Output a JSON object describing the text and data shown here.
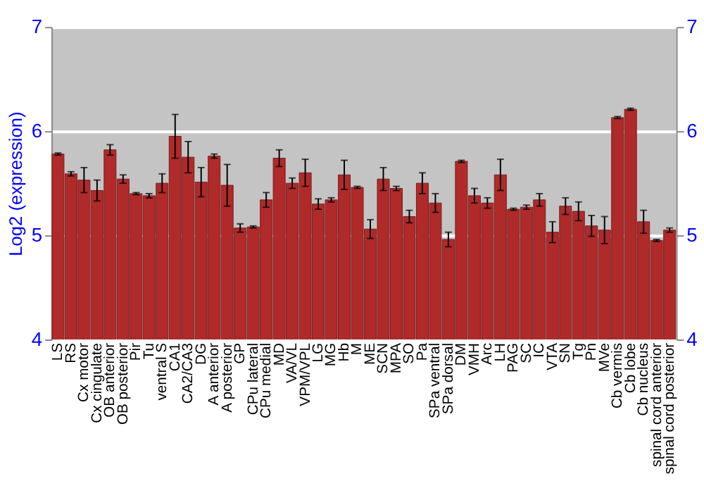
{
  "chart_data": {
    "type": "bar",
    "ylabel": "Log2 (expression)",
    "categories": [
      "LS",
      "RS",
      "Cx motor",
      "Cx cingulate",
      "OB anterior",
      "OB posterior",
      "Pir",
      "Tu",
      "ventral S",
      "CA1",
      "CA2/CA3",
      "DG",
      "A anterior",
      "A posterior",
      "GP",
      "CPu lateral",
      "CPu medial",
      "MD",
      "VA/VL",
      "VPM/VPL",
      "LG",
      "MG",
      "Hb",
      "M",
      "ME",
      "SCN",
      "MPA",
      "SO",
      "Pa",
      "SPa ventral",
      "SPa dorsal",
      "DM",
      "VMH",
      "Arc",
      "LH",
      "PAG",
      "SC",
      "IC",
      "VTA",
      "SN",
      "Tg",
      "Pn",
      "MVe",
      "Cb vermis",
      "Cb lobe",
      "Cb nucleus",
      "spinal cord anterior",
      "spinal cord posterior"
    ],
    "values": [
      5.78,
      5.59,
      5.53,
      5.43,
      5.82,
      5.54,
      5.4,
      5.38,
      5.5,
      5.95,
      5.75,
      5.51,
      5.76,
      5.48,
      5.07,
      5.08,
      5.34,
      5.74,
      5.5,
      5.6,
      5.3,
      5.34,
      5.58,
      5.46,
      5.06,
      5.54,
      5.45,
      5.18,
      5.5,
      5.31,
      4.96,
      5.71,
      5.38,
      5.31,
      5.58,
      5.25,
      5.27,
      5.34,
      5.03,
      5.28,
      5.23,
      5.09,
      5.05,
      6.13,
      6.21,
      5.13,
      4.95,
      5.05
    ],
    "errors": [
      0.01,
      0.02,
      0.12,
      0.1,
      0.05,
      0.04,
      0.01,
      0.02,
      0.09,
      0.21,
      0.15,
      0.14,
      0.02,
      0.2,
      0.04,
      0.01,
      0.07,
      0.08,
      0.05,
      0.13,
      0.05,
      0.02,
      0.14,
      0.01,
      0.09,
      0.11,
      0.02,
      0.06,
      0.1,
      0.09,
      0.07,
      0.01,
      0.07,
      0.05,
      0.15,
      0.01,
      0.02,
      0.06,
      0.1,
      0.08,
      0.09,
      0.1,
      0.13,
      0.01,
      0.01,
      0.11,
      0.01,
      0.02
    ],
    "color": "#b02a2a",
    "ylim": [
      4,
      7
    ],
    "yticks": [
      4,
      5,
      6,
      7
    ],
    "y2lim": [
      4,
      7
    ],
    "y2ticks": [
      4,
      5,
      6,
      7
    ],
    "grid": "y"
  }
}
